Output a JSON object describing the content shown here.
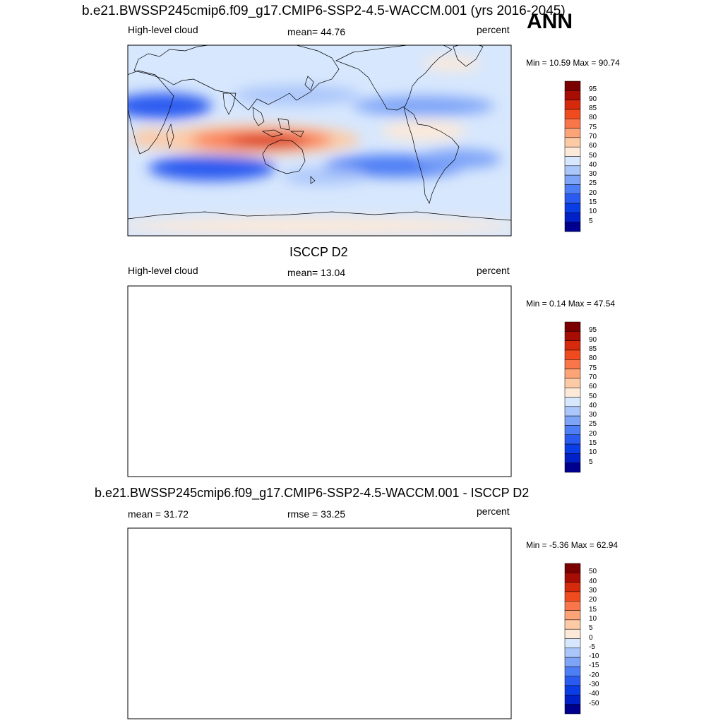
{
  "season": "ANN",
  "panels": [
    {
      "title": "b.e21.BWSSP245cmip6.f09_g17.CMIP6-SSP2-4.5-WACCM.001 (yrs 2016-2045)",
      "left": "High-level cloud",
      "center": "mean=  44.76",
      "right": "percent",
      "minmax": "Min =  10.59 Max =  90.74",
      "colorbar": [
        "95",
        "90",
        "85",
        "80",
        "75",
        "70",
        "60",
        "50",
        "40",
        "30",
        "25",
        "20",
        "15",
        "10",
        "5"
      ],
      "field_mean": 44.76
    },
    {
      "title": "ISCCP D2",
      "left": "High-level cloud",
      "center": "mean=  13.04",
      "right": "percent",
      "minmax": "Min =   0.14 Max =  47.54",
      "colorbar": [
        "95",
        "90",
        "85",
        "80",
        "75",
        "70",
        "60",
        "50",
        "40",
        "30",
        "25",
        "20",
        "15",
        "10",
        "5"
      ],
      "field_mean": 13.04
    },
    {
      "title": "b.e21.BWSSP245cmip6.f09_g17.CMIP6-SSP2-4.5-WACCM.001 - ISCCP D2",
      "left": "mean =  31.72",
      "center": "rmse =  33.25",
      "right": "percent",
      "minmax": "Min =  -5.36 Max =  62.94",
      "colorbar": [
        "50",
        "40",
        "30",
        "20",
        "15",
        "10",
        "5",
        "0",
        "-5",
        "-10",
        "-15",
        "-20",
        "-30",
        "-40",
        "-50"
      ],
      "field_mean": 31.72
    }
  ],
  "palette": [
    "#00008f",
    "#0021c8",
    "#0a3de6",
    "#2a5af0",
    "#4d7ef5",
    "#7ea4f8",
    "#aac6fa",
    "#d7e7fd",
    "#fde9d8",
    "#fdcaa6",
    "#fca477",
    "#f9764a",
    "#f04a1f",
    "#d62a0d",
    "#a80d04",
    "#7a0000"
  ]
}
